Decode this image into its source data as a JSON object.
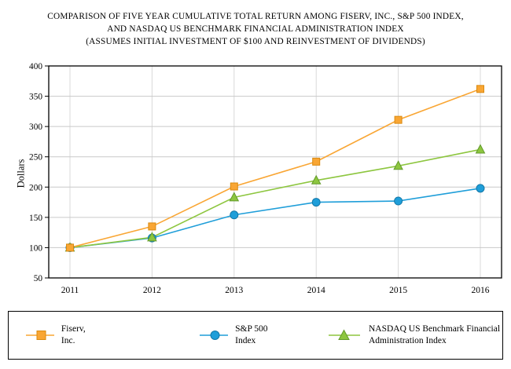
{
  "title": {
    "line1": "COMPARISON OF FIVE YEAR CUMULATIVE TOTAL RETURN AMONG FISERV, INC., S&P 500 INDEX,",
    "line2": "AND NASDAQ US BENCHMARK FINANCIAL ADMINISTRATION INDEX",
    "line3": "(ASSUMES INITIAL INVESTMENT OF $100 AND REINVESTMENT OF DIVIDENDS)"
  },
  "chart_data": {
    "type": "line",
    "ylabel": "Dollars",
    "ylim": [
      50,
      400
    ],
    "ytick_step": 50,
    "yticks": [
      400,
      350,
      300,
      250,
      200,
      150,
      100,
      50
    ],
    "categories": [
      "2011",
      "2012",
      "2013",
      "2014",
      "2015",
      "2016"
    ],
    "grid": true,
    "legend_position": "bottom",
    "colors": {
      "grid": "#c9c9c9",
      "vgrid": "#d9d9d9",
      "axis": "#000000"
    },
    "series": [
      {
        "name": "Fiserv, Inc.",
        "marker": "square",
        "color": "#F9A634",
        "stroke": "#D98A10",
        "values": [
          100,
          135,
          201,
          242,
          311,
          362
        ]
      },
      {
        "name": "S&P 500 Index",
        "marker": "circle",
        "color": "#1F9ED9",
        "stroke": "#1478A8",
        "values": [
          100,
          116,
          154,
          175,
          177,
          198
        ]
      },
      {
        "name": "NASDAQ US Benchmark Financial Administration Index",
        "marker": "triangle",
        "color": "#8DC63F",
        "stroke": "#629A2B",
        "values": [
          100,
          117,
          183,
          211,
          235,
          262
        ]
      }
    ]
  }
}
